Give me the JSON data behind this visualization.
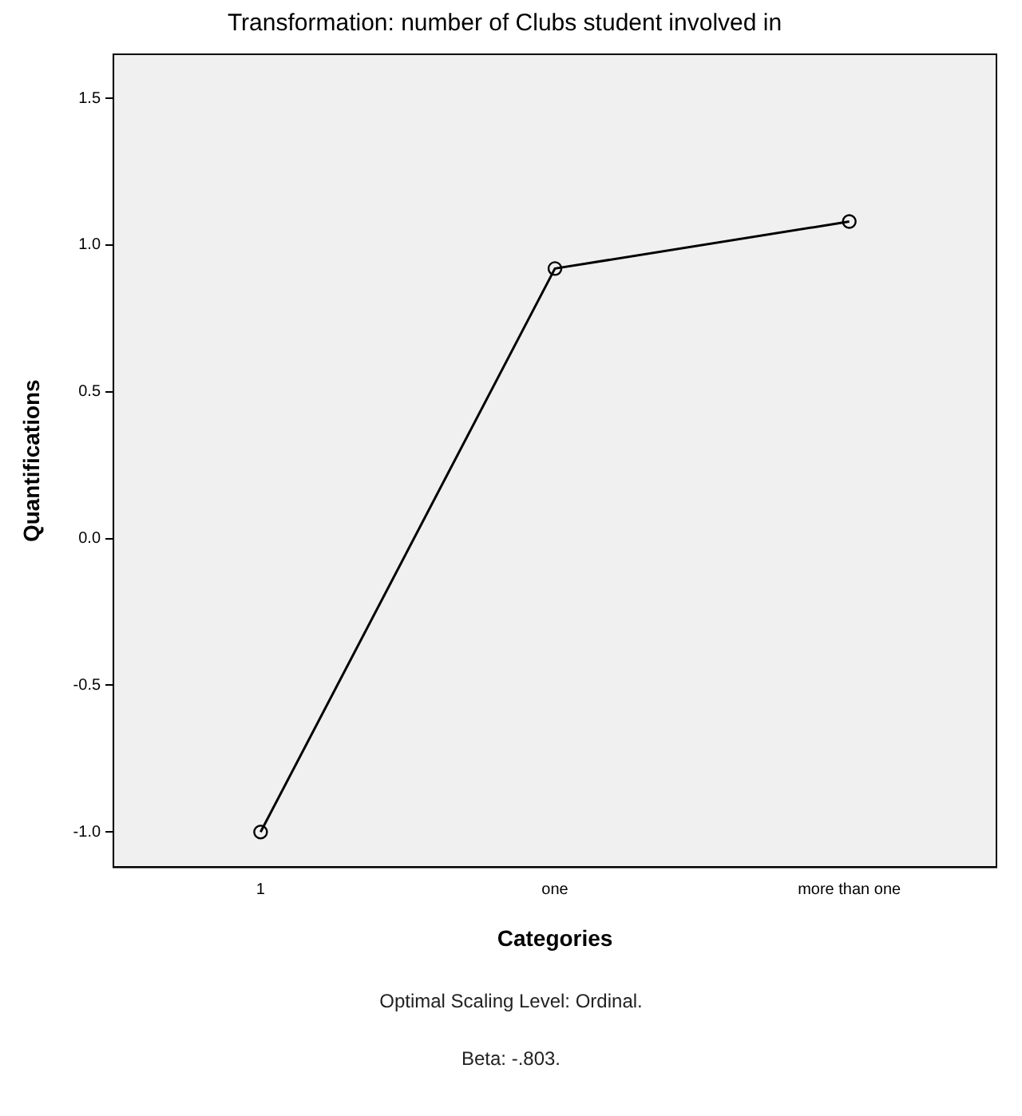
{
  "chart_data": {
    "type": "line",
    "title": "Transformation: number of Clubs student involved in",
    "xlabel": "Categories",
    "ylabel": "Quantifications",
    "categories": [
      "1",
      "one",
      "more than one"
    ],
    "series": [
      {
        "color": "#000000",
        "values": [
          -1.0,
          0.92,
          1.08
        ]
      }
    ],
    "ylim": [
      -1.12,
      1.65
    ],
    "yticks": [
      {
        "value": -1.0,
        "label": "-1.0"
      },
      {
        "value": -0.5,
        "label": "-0.5"
      },
      {
        "value": 0.0,
        "label": "0.0"
      },
      {
        "value": 0.5,
        "label": "0.5"
      },
      {
        "value": 1.0,
        "label": "1.0"
      },
      {
        "value": 1.5,
        "label": "1.5"
      }
    ],
    "grid": false,
    "legend": false,
    "marker": "circle",
    "line_style": "solid",
    "annotations": [
      "Optimal Scaling Level: Ordinal.",
      "Beta: -.803."
    ]
  }
}
